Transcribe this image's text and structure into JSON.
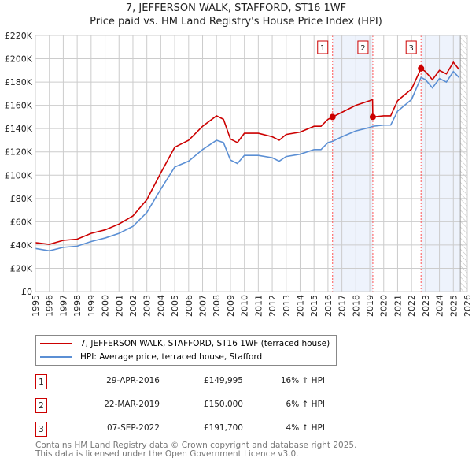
{
  "chart_data": {
    "type": "line",
    "title": "7, JEFFERSON WALK, STAFFORD, ST16 1WF",
    "subtitle": "Price paid vs. HM Land Registry's House Price Index (HPI)",
    "xlim": [
      1995,
      2026
    ],
    "ylim": [
      0,
      220000
    ],
    "grid": true,
    "x_ticks": [
      "1995",
      "1996",
      "1997",
      "1998",
      "1999",
      "2000",
      "2001",
      "2002",
      "2003",
      "2004",
      "2005",
      "2006",
      "2007",
      "2008",
      "2009",
      "2010",
      "2011",
      "2012",
      "2013",
      "2014",
      "2015",
      "2016",
      "2017",
      "2018",
      "2019",
      "2020",
      "2021",
      "2022",
      "2023",
      "2024",
      "2025",
      "2026"
    ],
    "y_ticks": [
      "£0",
      "£20K",
      "£40K",
      "£60K",
      "£80K",
      "£100K",
      "£120K",
      "£140K",
      "£160K",
      "£180K",
      "£200K",
      "£220K"
    ],
    "series": [
      {
        "name": "7, JEFFERSON WALK, STAFFORD, ST16 1WF (terraced house)",
        "color": "#cc0000",
        "x": [
          1995,
          1996,
          1997,
          1998,
          1999,
          2000,
          2001,
          2002,
          2003,
          2004,
          2005,
          2006,
          2007,
          2008,
          2008.5,
          2009,
          2009.5,
          2010,
          2011,
          2012,
          2012.5,
          2013,
          2014,
          2015,
          2015.5,
          2016,
          2016.33,
          2017,
          2018,
          2019,
          2019.2,
          2019.22,
          2020,
          2020.5,
          2021,
          2022,
          2022.68,
          2023,
          2023.5,
          2024,
          2024.5,
          2025,
          2025.4
        ],
        "y": [
          42000,
          40600,
          44000,
          45000,
          50000,
          53000,
          58000,
          65000,
          79000,
          102000,
          124000,
          130000,
          142000,
          151000,
          148000,
          131000,
          128000,
          136000,
          136000,
          133000,
          130000,
          135000,
          137000,
          142000,
          142000,
          148000,
          149995,
          154000,
          160000,
          164000,
          165000,
          150000,
          151000,
          151000,
          164000,
          174000,
          191700,
          189000,
          182000,
          190000,
          187000,
          197000,
          191000
        ]
      },
      {
        "name": "HPI: Average price, terraced house, Stafford",
        "color": "#5b8fd4",
        "x": [
          1995,
          1996,
          1997,
          1998,
          1999,
          2000,
          2001,
          2002,
          2003,
          2004,
          2005,
          2006,
          2007,
          2008,
          2008.5,
          2009,
          2009.5,
          2010,
          2011,
          2012,
          2012.5,
          2013,
          2014,
          2015,
          2015.5,
          2016,
          2016.33,
          2017,
          2018,
          2019,
          2019.22,
          2020,
          2020.5,
          2021,
          2022,
          2022.68,
          2023,
          2023.5,
          2024,
          2024.5,
          2025,
          2025.4
        ],
        "y": [
          37000,
          35000,
          38000,
          39000,
          43000,
          46000,
          50000,
          56000,
          68000,
          88000,
          107000,
          112000,
          122000,
          130000,
          128000,
          113000,
          110000,
          117000,
          117000,
          115000,
          112000,
          116000,
          118000,
          122000,
          122000,
          128000,
          129000,
          133000,
          138000,
          141000,
          142000,
          143000,
          143000,
          155000,
          165000,
          184000,
          182000,
          175000,
          183000,
          180000,
          189000,
          184000
        ]
      }
    ],
    "sales": [
      {
        "label": "1",
        "date": "29-APR-2016",
        "x": 2016.33,
        "price": "£149,995",
        "value": 149995,
        "hpi": "16% ↑ HPI"
      },
      {
        "label": "2",
        "date": "22-MAR-2019",
        "x": 2019.22,
        "price": "£150,000",
        "value": 150000,
        "hpi": "6% ↑ HPI"
      },
      {
        "label": "3",
        "date": "07-SEP-2022",
        "x": 2022.68,
        "price": "£191,700",
        "value": 191700,
        "hpi": "4% ↑ HPI"
      }
    ],
    "shaded_ranges": [
      [
        2016.33,
        2019.22
      ],
      [
        2022.68,
        2025.5
      ]
    ],
    "future_from": 2025.5
  },
  "footer": {
    "line1": "Contains HM Land Registry data © Crown copyright and database right 2025.",
    "line2": "This data is licensed under the Open Government Licence v3.0."
  }
}
